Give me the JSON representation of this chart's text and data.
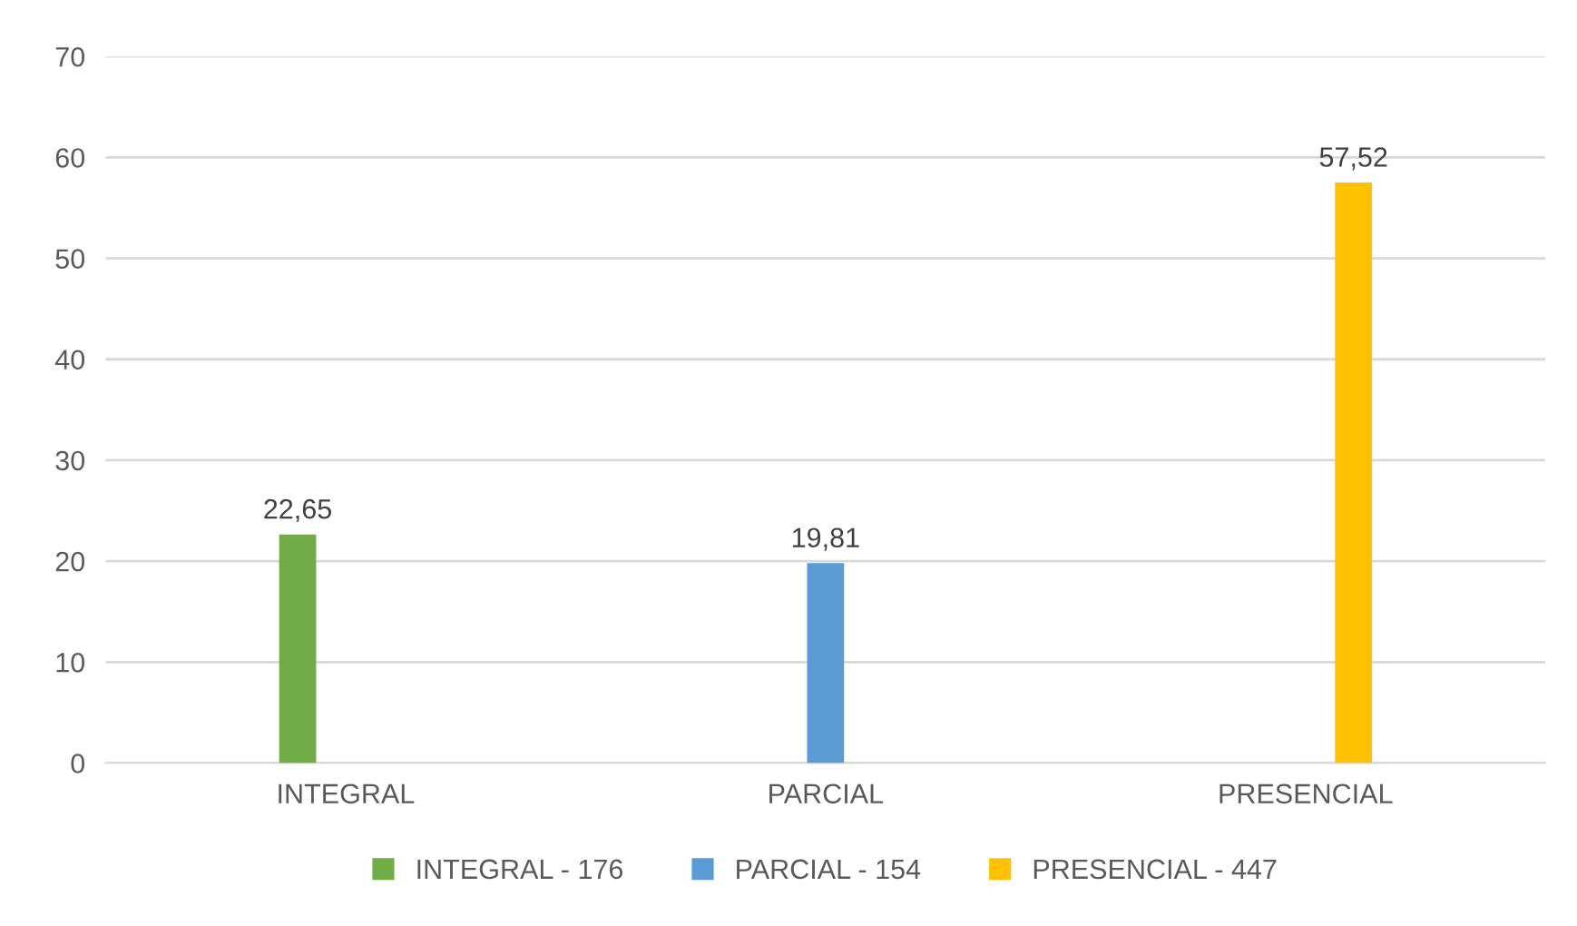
{
  "chart_data": {
    "type": "bar",
    "categories": [
      "INTEGRAL",
      "PARCIAL",
      "PRESENCIAL"
    ],
    "series": [
      {
        "name": "INTEGRAL - 176",
        "color": "#70ad47",
        "values": [
          22.65,
          null,
          null
        ],
        "value_labels": [
          "22,65",
          null,
          null
        ]
      },
      {
        "name": "PARCIAL - 154",
        "color": "#5b9bd5",
        "values": [
          null,
          19.81,
          null
        ],
        "value_labels": [
          null,
          "19,81",
          null
        ]
      },
      {
        "name": "PRESENCIAL - 447",
        "color": "#ffc000",
        "values": [
          null,
          null,
          57.52
        ],
        "value_labels": [
          null,
          null,
          "57,52"
        ]
      }
    ],
    "ylim": [
      0,
      70
    ],
    "yticks": [
      0,
      10,
      20,
      30,
      40,
      50,
      60,
      70
    ],
    "grid": "y",
    "legend": "bottom"
  }
}
